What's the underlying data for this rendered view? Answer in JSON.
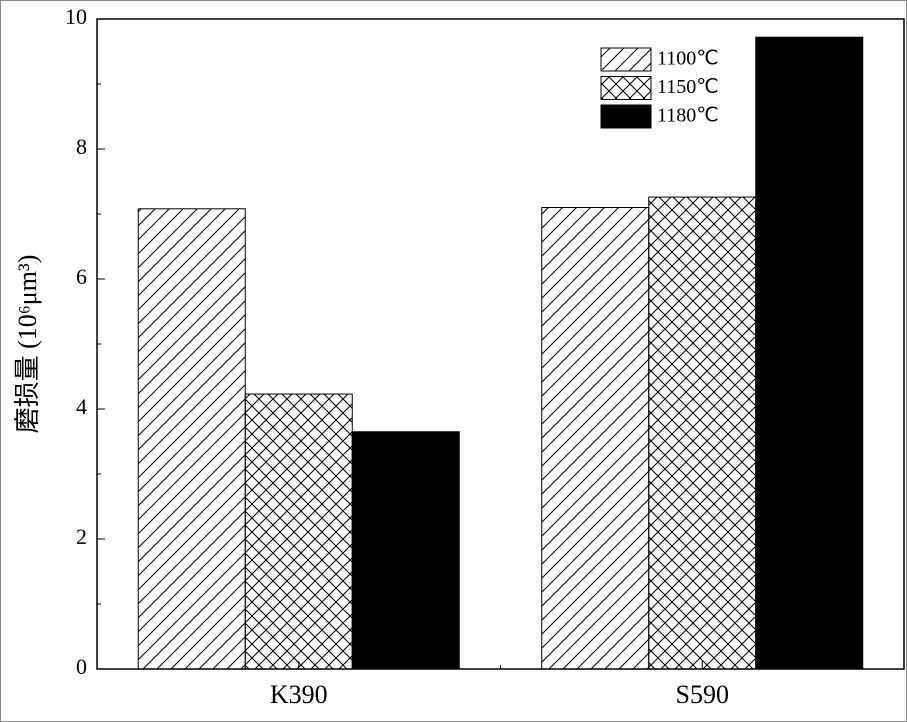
{
  "chart_data": {
    "type": "bar",
    "ylabel": "磨损量 (10⁶μm³)",
    "categories": [
      "K390",
      "S590"
    ],
    "series": [
      {
        "name": "1100℃",
        "color": "#000000",
        "pattern": "hatch",
        "values": [
          7.08,
          7.1
        ]
      },
      {
        "name": "1150℃",
        "color": "#000000",
        "pattern": "crosshatch",
        "values": [
          4.23,
          7.26
        ]
      },
      {
        "name": "1180℃",
        "color": "#000000",
        "pattern": "solid",
        "values": [
          3.65,
          9.72
        ]
      }
    ],
    "ylim": [
      0,
      10
    ],
    "yticks": [
      0,
      2,
      4,
      6,
      8,
      10
    ],
    "legend": "upper right"
  }
}
